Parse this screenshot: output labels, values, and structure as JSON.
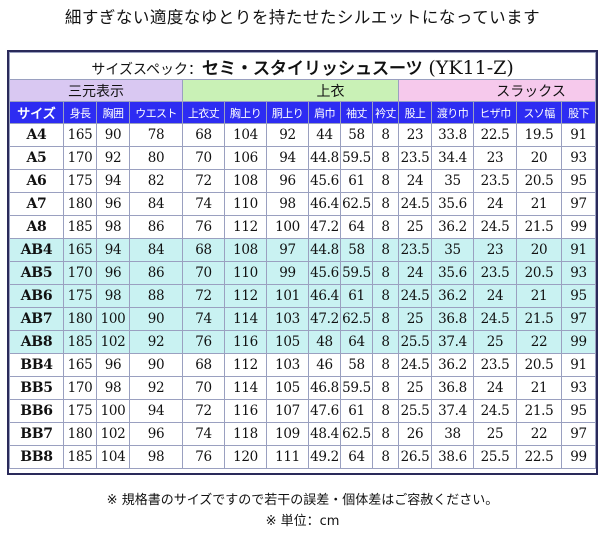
{
  "page": {
    "headline": "細すぎない適度なゆとりを持たせたシルエットになっています",
    "note_disclaimer": "※ 規格書のサイズですので若干の誤差・個体差はご容赦ください。",
    "note_unit": "※ 単位：cm"
  },
  "table": {
    "title_prefix": "サイズスペック：",
    "title_name": "セミ・スタイリッシュスーツ",
    "title_code": "(YK11-Z)",
    "groups": [
      "三元表示",
      "上衣",
      "スラックス"
    ],
    "size_header": "サイズ",
    "headers": [
      "身長",
      "胸囲",
      "ウエスト",
      "上衣丈",
      "胸上り",
      "胴上り",
      "肩巾",
      "袖丈",
      "衿丈",
      "股上",
      "渡り巾",
      "ヒザ巾",
      "スソ幅",
      "股下"
    ],
    "rows": [
      {
        "size": "A4",
        "values": [
          "165",
          "90",
          "78",
          "68",
          "104",
          "92",
          "44",
          "58",
          "8",
          "23",
          "33.8",
          "22.5",
          "19.5",
          "91"
        ],
        "tint": false
      },
      {
        "size": "A5",
        "values": [
          "170",
          "92",
          "80",
          "70",
          "106",
          "94",
          "44.8",
          "59.5",
          "8",
          "23.5",
          "34.4",
          "23",
          "20",
          "93"
        ],
        "tint": false
      },
      {
        "size": "A6",
        "values": [
          "175",
          "94",
          "82",
          "72",
          "108",
          "96",
          "45.6",
          "61",
          "8",
          "24",
          "35",
          "23.5",
          "20.5",
          "95"
        ],
        "tint": false
      },
      {
        "size": "A7",
        "values": [
          "180",
          "96",
          "84",
          "74",
          "110",
          "98",
          "46.4",
          "62.5",
          "8",
          "24.5",
          "35.6",
          "24",
          "21",
          "97"
        ],
        "tint": false
      },
      {
        "size": "A8",
        "values": [
          "185",
          "98",
          "86",
          "76",
          "112",
          "100",
          "47.2",
          "64",
          "8",
          "25",
          "36.2",
          "24.5",
          "21.5",
          "99"
        ],
        "tint": false
      },
      {
        "size": "AB4",
        "values": [
          "165",
          "94",
          "84",
          "68",
          "108",
          "97",
          "44.8",
          "58",
          "8",
          "23.5",
          "35",
          "23",
          "20",
          "91"
        ],
        "tint": true
      },
      {
        "size": "AB5",
        "values": [
          "170",
          "96",
          "86",
          "70",
          "110",
          "99",
          "45.6",
          "59.5",
          "8",
          "24",
          "35.6",
          "23.5",
          "20.5",
          "93"
        ],
        "tint": true
      },
      {
        "size": "AB6",
        "values": [
          "175",
          "98",
          "88",
          "72",
          "112",
          "101",
          "46.4",
          "61",
          "8",
          "24.5",
          "36.2",
          "24",
          "21",
          "95"
        ],
        "tint": true
      },
      {
        "size": "AB7",
        "values": [
          "180",
          "100",
          "90",
          "74",
          "114",
          "103",
          "47.2",
          "62.5",
          "8",
          "25",
          "36.8",
          "24.5",
          "21.5",
          "97"
        ],
        "tint": true
      },
      {
        "size": "AB8",
        "values": [
          "185",
          "102",
          "92",
          "76",
          "116",
          "105",
          "48",
          "64",
          "8",
          "25.5",
          "37.4",
          "25",
          "22",
          "99"
        ],
        "tint": true
      },
      {
        "size": "BB4",
        "values": [
          "165",
          "96",
          "90",
          "68",
          "112",
          "103",
          "46",
          "58",
          "8",
          "24.5",
          "36.2",
          "23.5",
          "20.5",
          "91"
        ],
        "tint": false
      },
      {
        "size": "BB5",
        "values": [
          "170",
          "98",
          "92",
          "70",
          "114",
          "105",
          "46.8",
          "59.5",
          "8",
          "25",
          "36.8",
          "24",
          "21",
          "93"
        ],
        "tint": false
      },
      {
        "size": "BB6",
        "values": [
          "175",
          "100",
          "94",
          "72",
          "116",
          "107",
          "47.6",
          "61",
          "8",
          "25.5",
          "37.4",
          "24.5",
          "21.5",
          "95"
        ],
        "tint": false
      },
      {
        "size": "BB7",
        "values": [
          "180",
          "102",
          "96",
          "74",
          "118",
          "109",
          "48.4",
          "62.5",
          "8",
          "26",
          "38",
          "25",
          "22",
          "97"
        ],
        "tint": false
      },
      {
        "size": "BB8",
        "values": [
          "185",
          "104",
          "98",
          "76",
          "120",
          "111",
          "49.2",
          "64",
          "8",
          "26.5",
          "38.6",
          "25.5",
          "22.5",
          "99"
        ],
        "tint": false
      }
    ]
  }
}
